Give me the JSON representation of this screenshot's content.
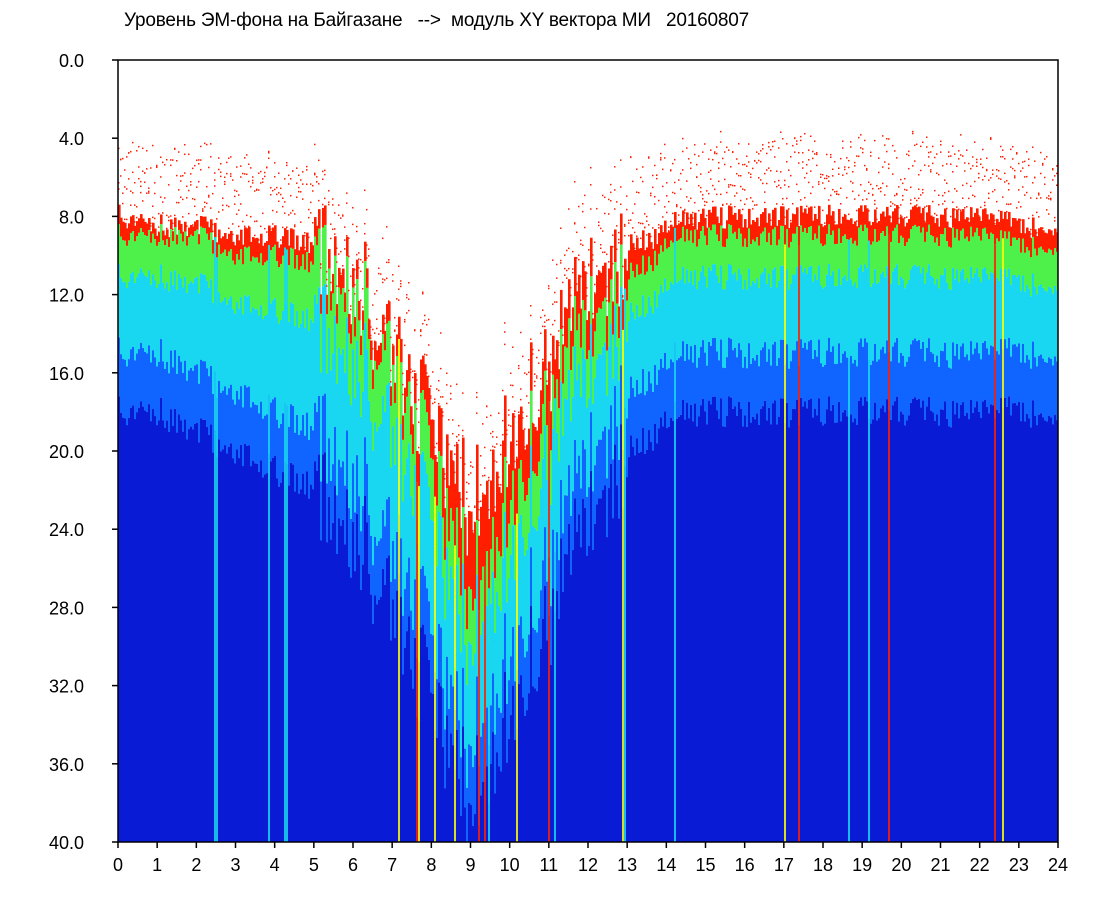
{
  "chart_data": {
    "type": "heatmap",
    "title": "Уровень ЭМ-фона на Байгазане   -->  модуль XY вектора МИ   20160807",
    "xlabel": "",
    "ylabel": "",
    "xlim": [
      0,
      24
    ],
    "ylim": [
      0,
      40
    ],
    "y_inverted": true,
    "grid": false,
    "x_ticks": [
      "0",
      "1",
      "2",
      "3",
      "4",
      "5",
      "6",
      "7",
      "8",
      "9",
      "10",
      "11",
      "12",
      "13",
      "14",
      "15",
      "16",
      "17",
      "18",
      "19",
      "20",
      "21",
      "22",
      "23",
      "24"
    ],
    "y_ticks": [
      "0.0",
      "4.0",
      "8.0",
      "12.0",
      "16.0",
      "20.0",
      "24.0",
      "28.0",
      "32.0",
      "36.0",
      "40.0"
    ],
    "colormap": [
      "#0a1bd6",
      "#1064ff",
      "#19d7f0",
      "#4ef04a",
      "#ffff00",
      "#ff1e00"
    ],
    "level_profile": {
      "hours": [
        0,
        1,
        2,
        3,
        4,
        5,
        6,
        7,
        8,
        9,
        10,
        11,
        12,
        13,
        13.9,
        14,
        16,
        18,
        19,
        20,
        21,
        22,
        23,
        24
      ],
      "red_onset": [
        8,
        8.5,
        8.5,
        9,
        9,
        9.5,
        11,
        15,
        19,
        23,
        19,
        16,
        11,
        9.5,
        9,
        8.2,
        8,
        8,
        8,
        8,
        8,
        8,
        8.5,
        8.5
      ],
      "green_onset": [
        9,
        9,
        9,
        10,
        10,
        10.5,
        12,
        16,
        21,
        27,
        22,
        18,
        13,
        11,
        10,
        9,
        9,
        9,
        9,
        9,
        9,
        9,
        9.5,
        9.5
      ],
      "blue_onset": [
        15,
        15,
        16,
        17,
        18,
        19,
        21,
        25,
        30,
        35,
        30,
        26,
        20,
        17,
        16,
        15,
        15,
        15,
        15,
        15,
        15,
        15,
        15,
        15
      ]
    }
  }
}
